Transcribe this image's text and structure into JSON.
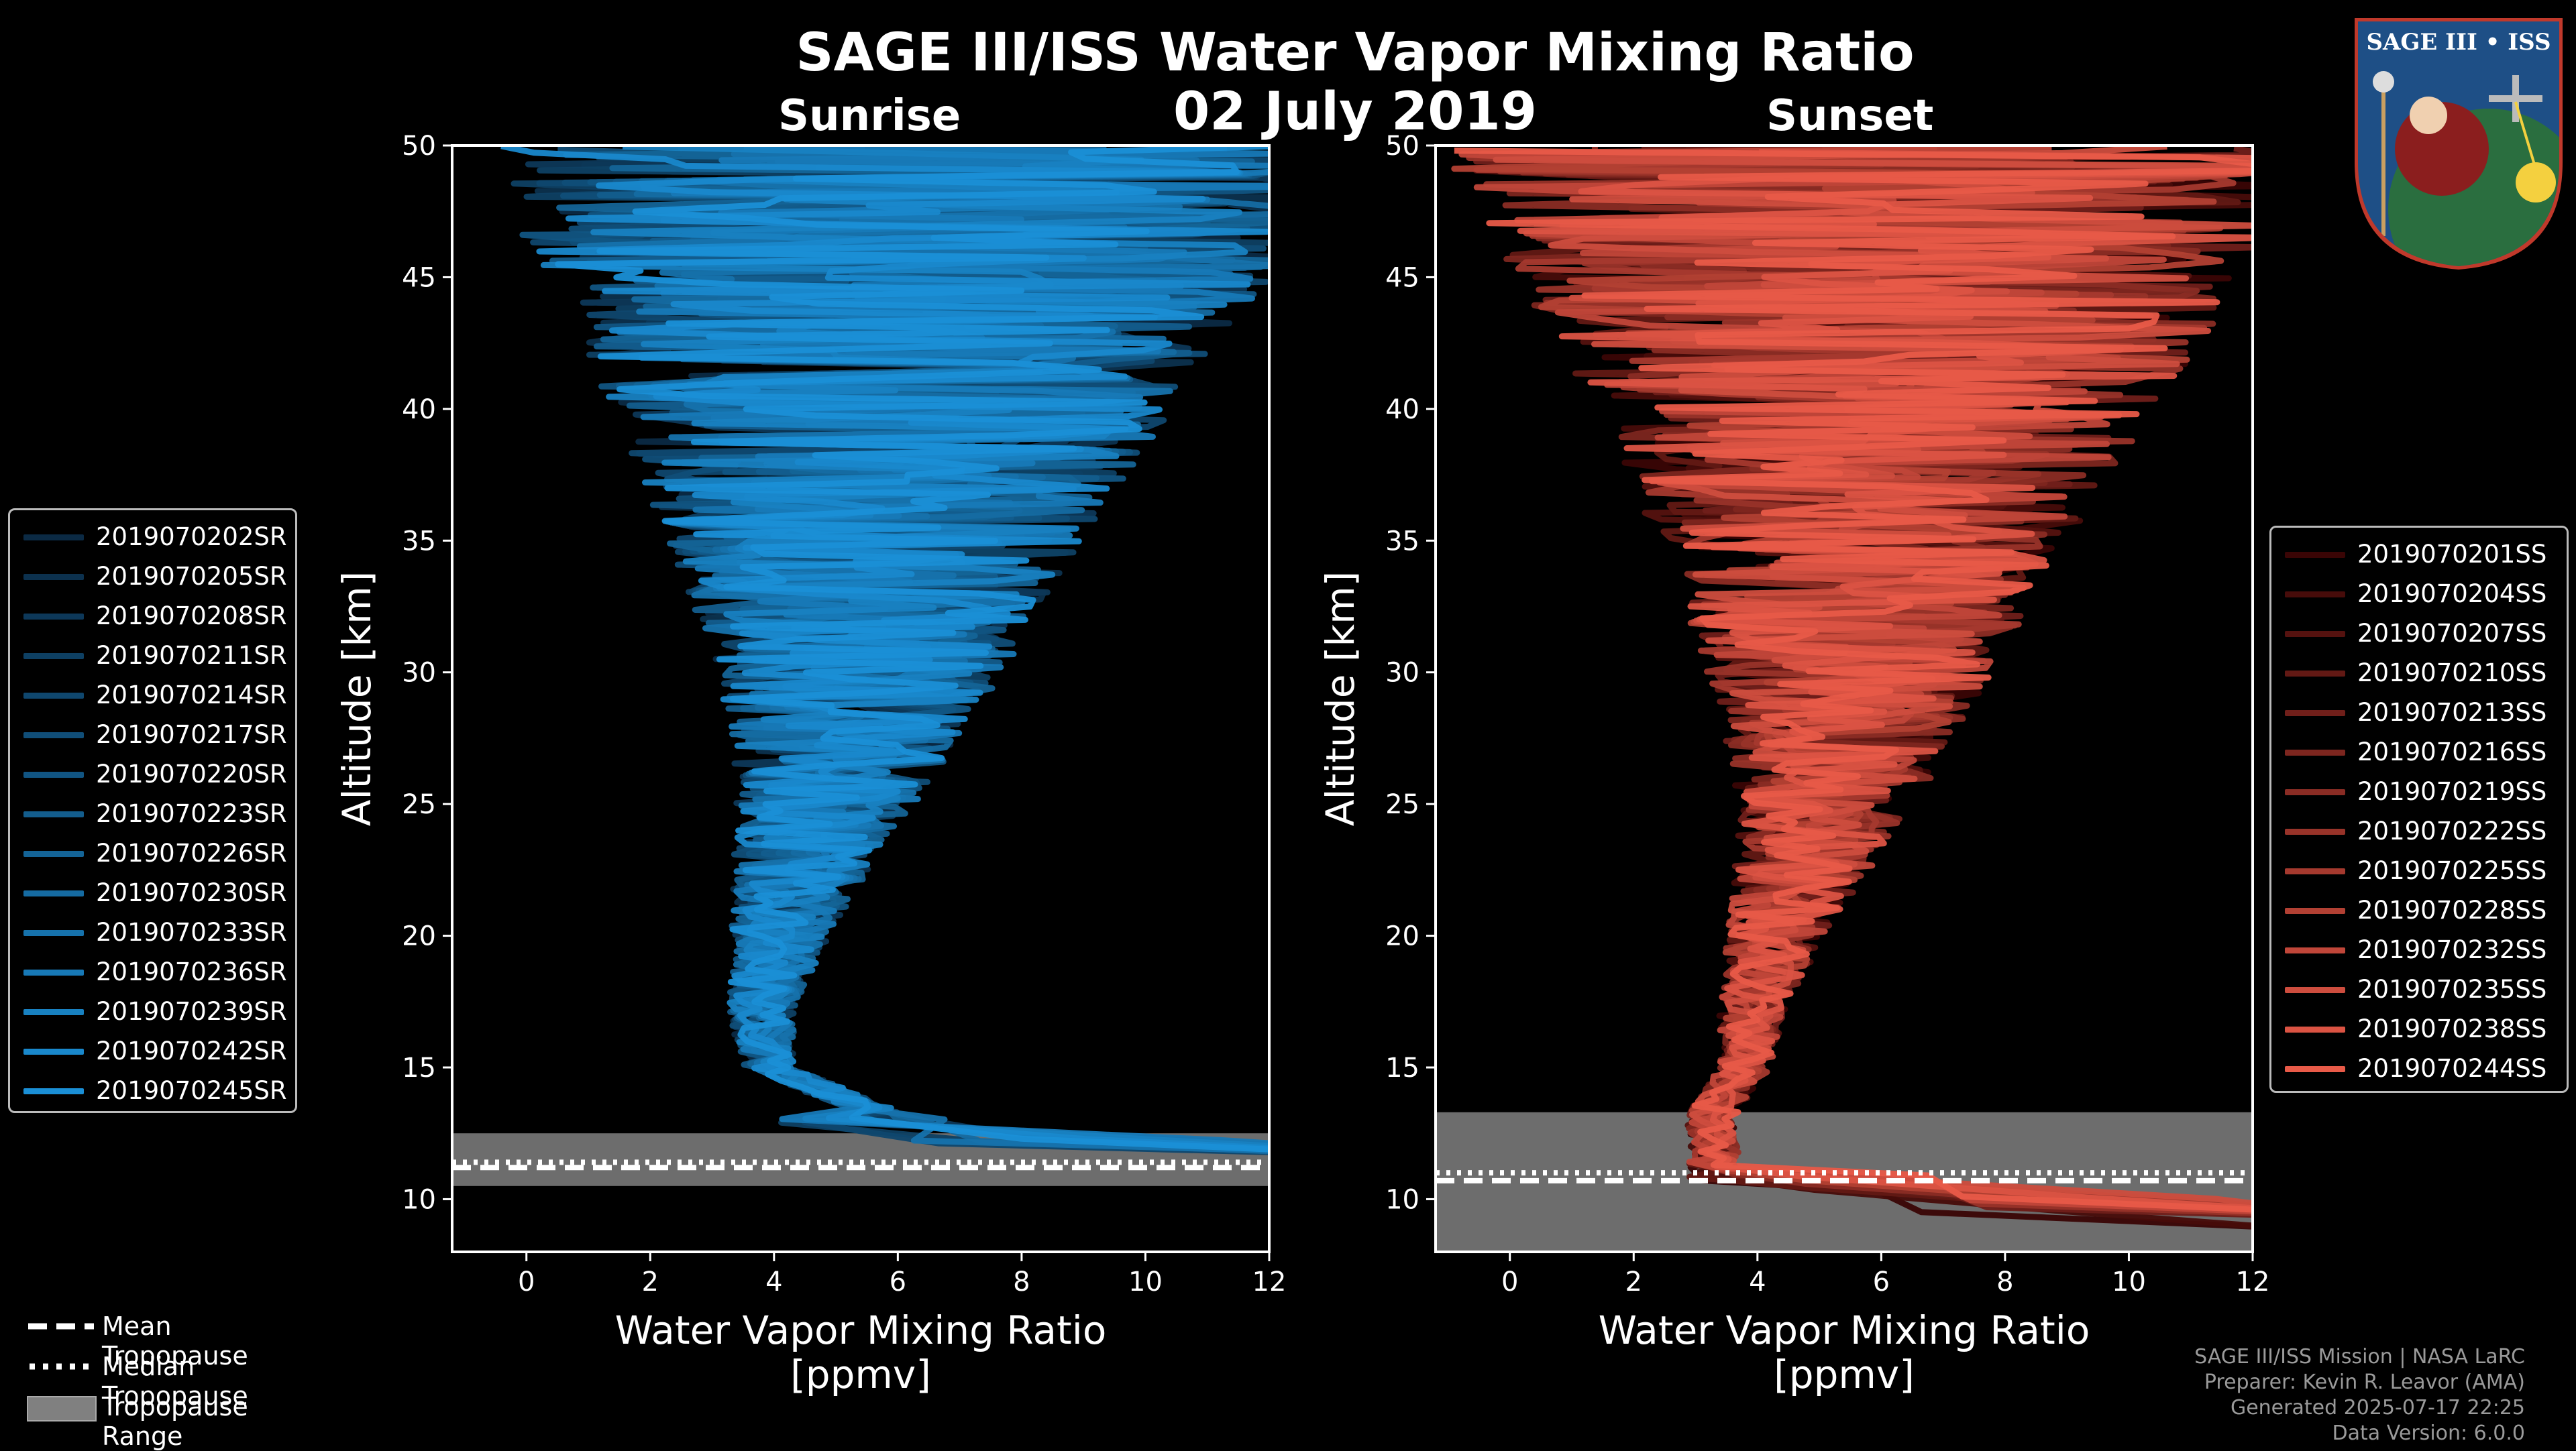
{
  "title": "SAGE III/ISS Water Vapor Mixing Ratio",
  "date": "02 July 2019",
  "logo_text": "SAGE III • ISS",
  "panels": {
    "sunrise": {
      "title": "Sunrise"
    },
    "sunset": {
      "title": "Sunset"
    }
  },
  "colors": {
    "sunrise": "#1a8fd6",
    "sunset": "#e85a48",
    "tropopause_range": "#808080",
    "background": "#000000"
  },
  "chart_data": [
    {
      "type": "line",
      "title": "Sunrise",
      "xlabel": "Water Vapor Mixing Ratio\n[ppmv]",
      "ylabel": "Altitude [km]",
      "xlim": [
        -1.2,
        12
      ],
      "ylim": [
        8,
        50
      ],
      "xticks": [
        "0",
        "2",
        "4",
        "6",
        "8",
        "10",
        "12"
      ],
      "yticks": [
        "10",
        "15",
        "20",
        "25",
        "30",
        "35",
        "40",
        "45",
        "50"
      ],
      "series_names": [
        "2019070202SR",
        "2019070205SR",
        "2019070208SR",
        "2019070211SR",
        "2019070214SR",
        "2019070217SR",
        "2019070220SR",
        "2019070223SR",
        "2019070226SR",
        "2019070230SR",
        "2019070233SR",
        "2019070236SR",
        "2019070239SR",
        "2019070242SR",
        "2019070245SR"
      ],
      "profile": {
        "altitude_km": [
          12,
          13,
          15,
          17,
          20,
          23,
          26,
          30,
          35,
          40,
          45,
          50
        ],
        "median_ppmv": [
          9.5,
          6.0,
          3.9,
          3.8,
          4.1,
          4.5,
          5.0,
          5.4,
          5.6,
          5.9,
          6.2,
          6.5
        ]
      },
      "mean_tropopause_km": 11.2,
      "median_tropopause_km": 11.4,
      "tropopause_range_km": [
        10.5,
        12.5
      ],
      "below_tropopause_cap_ppmv": 12
    },
    {
      "type": "line",
      "title": "Sunset",
      "xlabel": "Water Vapor Mixing Ratio\n[ppmv]",
      "ylabel": "Altitude [km]",
      "xlim": [
        -1.2,
        12
      ],
      "ylim": [
        8,
        50
      ],
      "xticks": [
        "0",
        "2",
        "4",
        "6",
        "8",
        "10",
        "12"
      ],
      "yticks": [
        "10",
        "15",
        "20",
        "25",
        "30",
        "35",
        "40",
        "45",
        "50"
      ],
      "series_names": [
        "2019070201SS",
        "2019070204SS",
        "2019070207SS",
        "2019070210SS",
        "2019070213SS",
        "2019070216SS",
        "2019070219SS",
        "2019070222SS",
        "2019070225SS",
        "2019070228SS",
        "2019070232SS",
        "2019070235SS",
        "2019070238SS",
        "2019070244SS"
      ],
      "profile": {
        "altitude_km": [
          12,
          13,
          15,
          17,
          20,
          23,
          26,
          30,
          35,
          40,
          45,
          50
        ],
        "median_ppmv": [
          3.3,
          3.2,
          3.8,
          3.9,
          4.3,
          4.8,
          5.2,
          5.5,
          5.7,
          5.9,
          6.0,
          6.2
        ]
      },
      "mean_tropopause_km": 10.7,
      "median_tropopause_km": 11.0,
      "tropopause_range_km": [
        8.0,
        13.3
      ],
      "below_tropopause_cap_ppmv": 12
    }
  ],
  "bottom_legend": {
    "mean": "Mean Tropopause",
    "median": "Median Tropopause",
    "range": "Tropopause Range"
  },
  "footer": {
    "line1": "SAGE III/ISS Mission | NASA LaRC",
    "line2": "Preparer: Kevin R. Leavor (AMA)",
    "line3": "Generated 2025-07-17 22:25",
    "line4": "Data Version: 6.0.0"
  }
}
